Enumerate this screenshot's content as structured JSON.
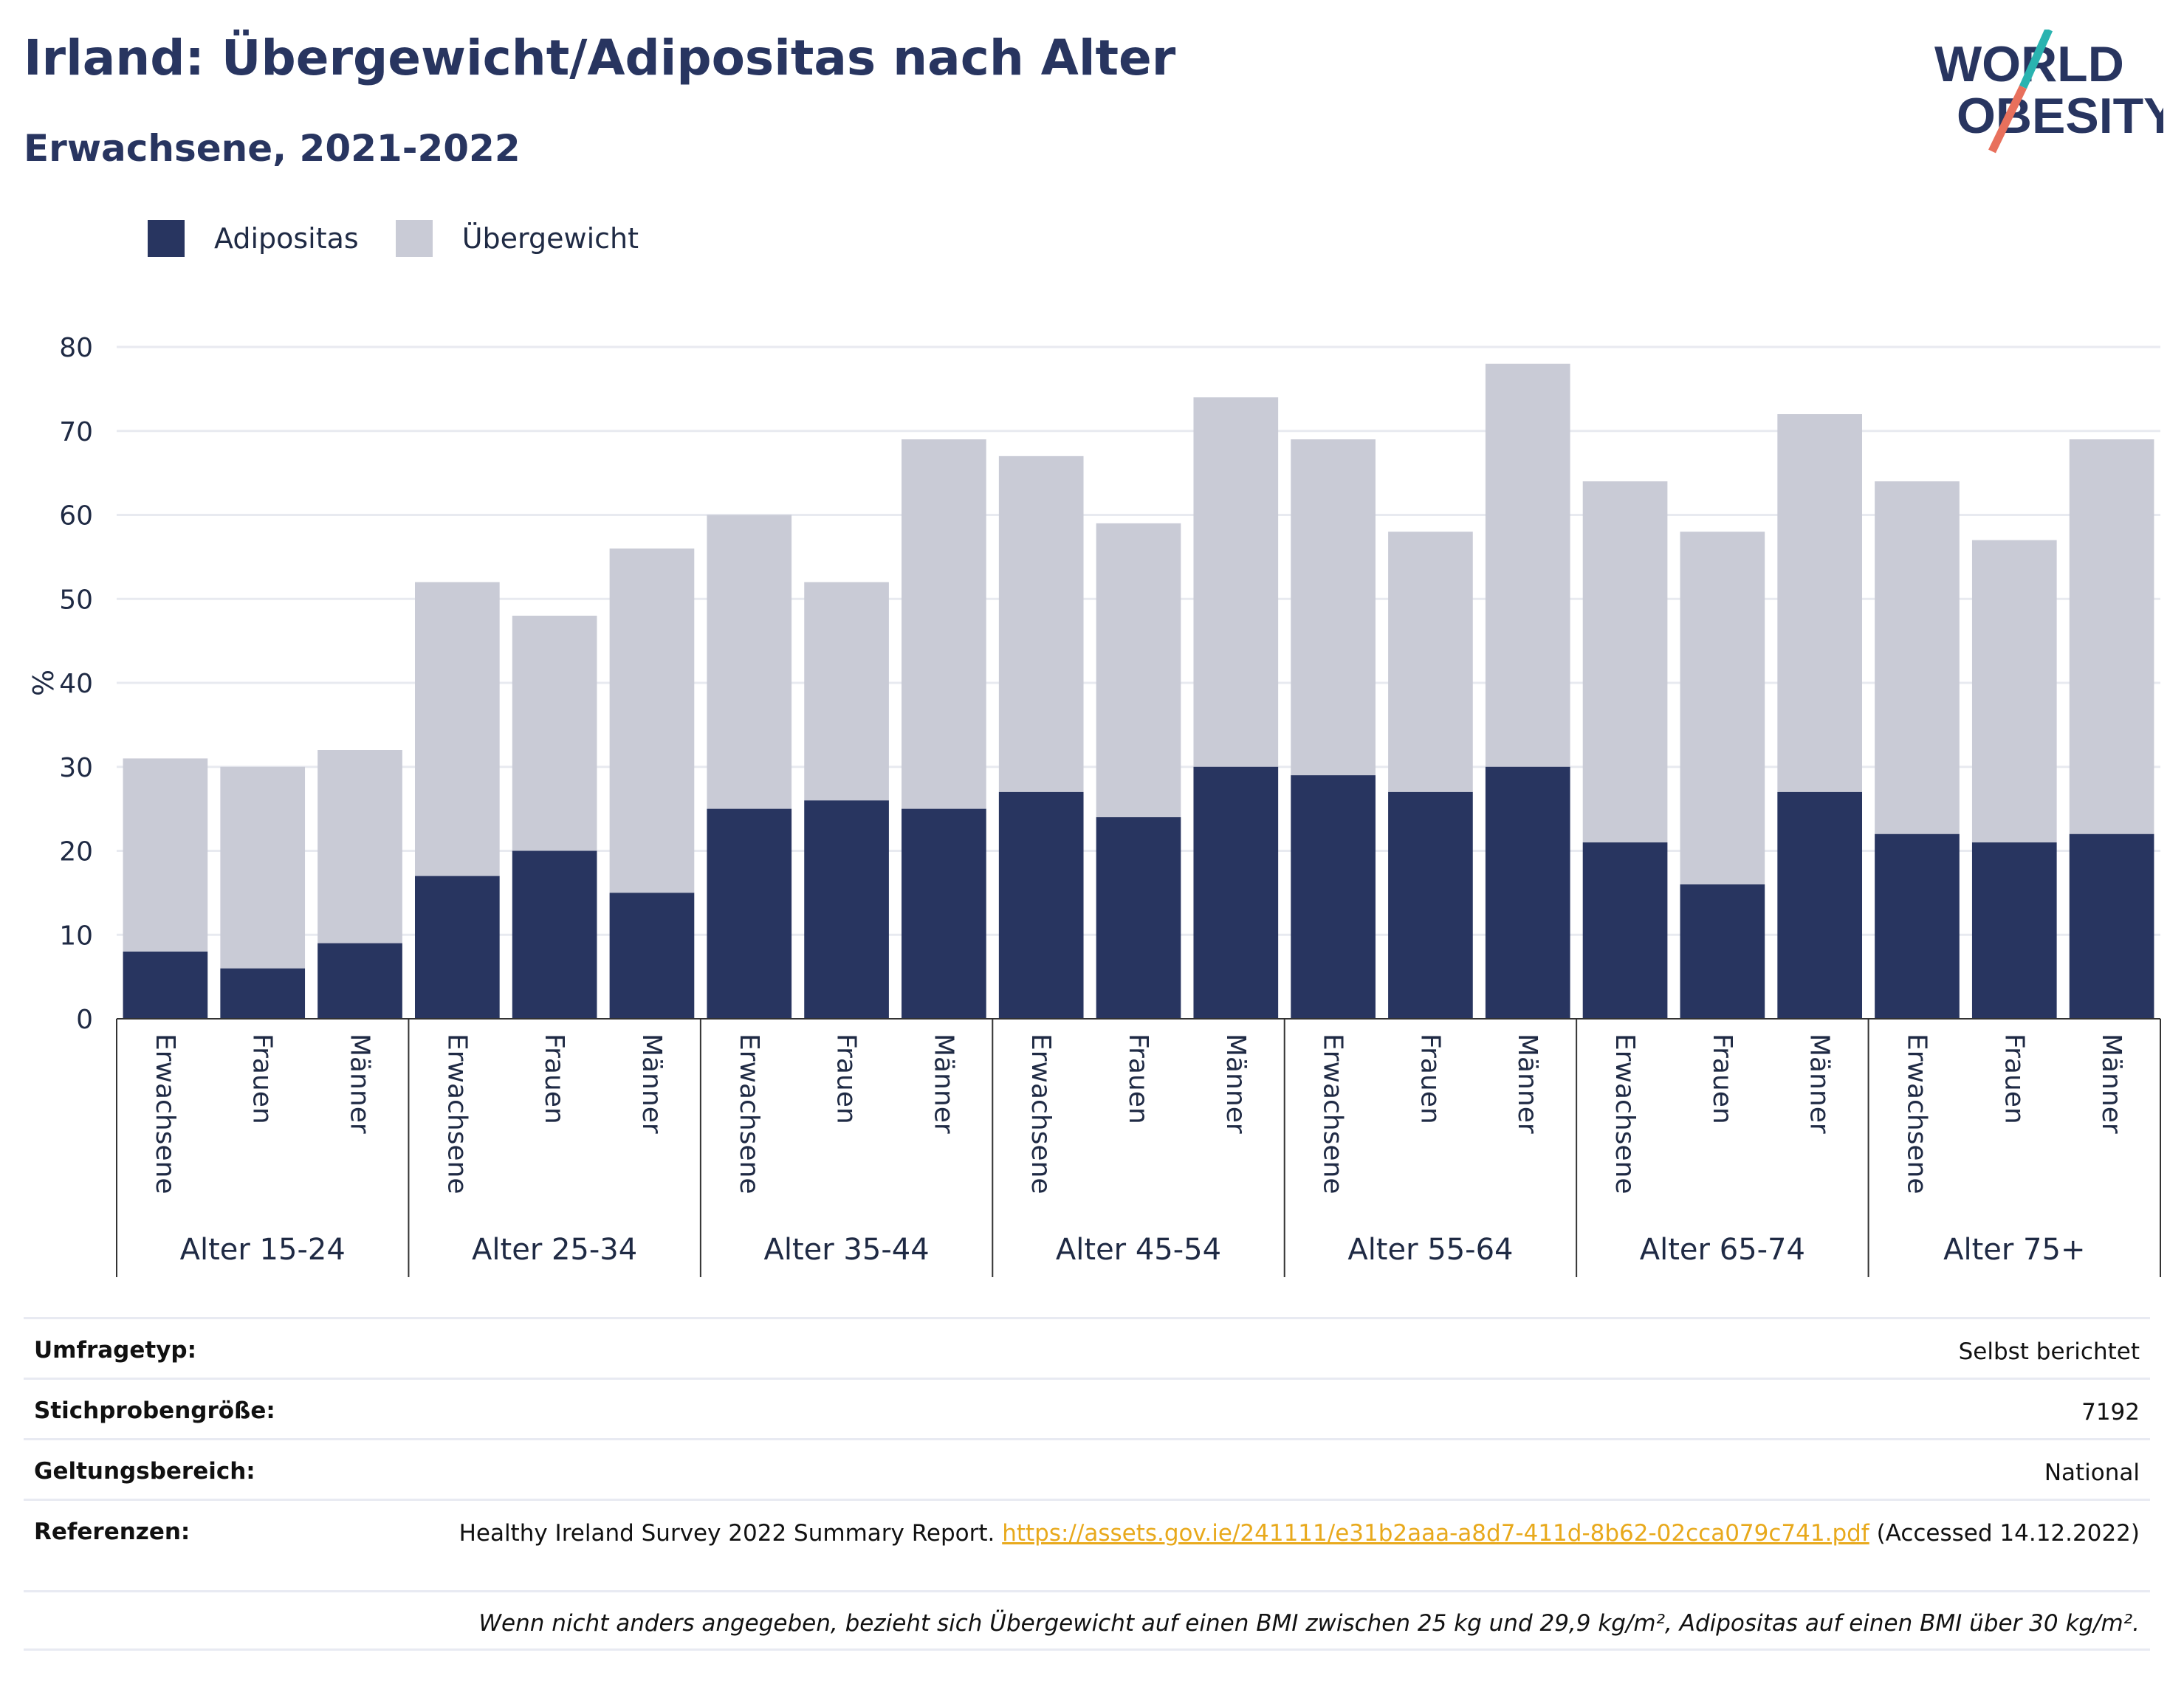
{
  "title": "Irland: Übergewicht/Adipositas nach Alter",
  "subtitle": "Erwachsene, 2021-2022",
  "logo": {
    "line1": "WORLD",
    "line2": "OBESITY"
  },
  "colors": {
    "adipositas": "#283560",
    "uebergewicht": "#c9cbd6",
    "accent_teal": "#2ab3b0",
    "accent_coral": "#e8705c",
    "link": "#e8a91c"
  },
  "legend": [
    {
      "label": "Adipositas",
      "color": "#283560"
    },
    {
      "label": "Übergewicht",
      "color": "#c9cbd6"
    }
  ],
  "chart_data": {
    "type": "bar",
    "stacked": true,
    "ylabel": "%",
    "ylim": [
      0,
      80
    ],
    "yticks": [
      0,
      10,
      20,
      30,
      40,
      50,
      60,
      70,
      80
    ],
    "grid": true,
    "legend_position": "top-left",
    "groups": [
      "Alter 15-24",
      "Alter 25-34",
      "Alter 35-44",
      "Alter 45-54",
      "Alter 55-64",
      "Alter 65-74",
      "Alter 75+"
    ],
    "subcategories": [
      "Erwachsene",
      "Frauen",
      "Männer"
    ],
    "series": [
      {
        "name": "Adipositas",
        "values": [
          8,
          6,
          9,
          17,
          20,
          15,
          25,
          26,
          25,
          27,
          24,
          30,
          29,
          27,
          30,
          21,
          16,
          27,
          22,
          21,
          22
        ]
      },
      {
        "name": "Übergewicht",
        "values": [
          23,
          24,
          23,
          35,
          28,
          41,
          35,
          26,
          44,
          40,
          35,
          44,
          40,
          31,
          48,
          43,
          42,
          45,
          42,
          36,
          47
        ]
      }
    ]
  },
  "info": {
    "rows": [
      {
        "key": "Umfragetyp:",
        "value": "Selbst berichtet"
      },
      {
        "key": "Stichprobengröße:",
        "value": "7192"
      },
      {
        "key": "Geltungsbereich:",
        "value": "National"
      }
    ],
    "reference": {
      "key": "Referenzen:",
      "text": "Healthy Ireland Survey 2022 Summary Report.",
      "link": "https://assets.gov.ie/241111/e31b2aaa-a8d7-411d-8b62-02cca079c741.pdf",
      "accessed": "(Accessed 14.12.2022)"
    },
    "note": "Wenn nicht anders angegeben, bezieht sich Übergewicht auf einen BMI zwischen 25 kg und 29,9 kg/m², Adipositas auf einen BMI über 30 kg/m²."
  }
}
